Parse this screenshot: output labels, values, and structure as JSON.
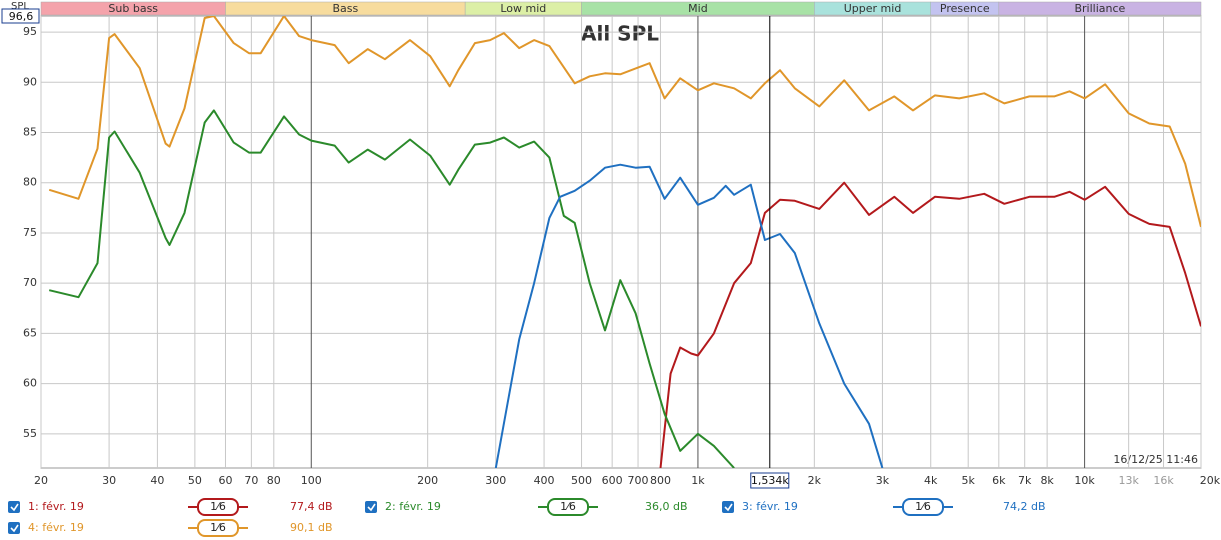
{
  "chart_data": {
    "type": "line",
    "title": "All SPL",
    "y_label": "SPL",
    "timestamp": "16/12/25 11:46",
    "log_x": true,
    "grid": true,
    "xlim": [
      20,
      20000
    ],
    "ylim": [
      51.6,
      96.6
    ],
    "yticks": [
      55,
      60,
      65,
      70,
      75,
      80,
      85,
      90,
      95,
      {
        "value": 96.6,
        "label": "96,6"
      }
    ],
    "xticks": [
      20,
      30,
      40,
      50,
      60,
      70,
      80,
      100,
      200,
      300,
      400,
      500,
      600,
      700,
      800,
      {
        "value": 1000,
        "label": "1k"
      },
      {
        "value": 2000,
        "label": "2k"
      },
      {
        "value": 3000,
        "label": "3k"
      },
      {
        "value": 4000,
        "label": "4k"
      },
      {
        "value": 5000,
        "label": "5k"
      },
      {
        "value": 6000,
        "label": "6k"
      },
      {
        "value": 7000,
        "label": "7k"
      },
      {
        "value": 8000,
        "label": "8k"
      },
      {
        "value": 10000,
        "label": "10k"
      },
      {
        "value": 13000,
        "label": "13k"
      },
      {
        "value": 16000,
        "label": "16k"
      },
      {
        "value": 20000,
        "label": "20kHz"
      }
    ],
    "cursor": {
      "value": 1534,
      "label": "1,534k"
    },
    "bands": [
      {
        "name": "Sub bass",
        "from": 20,
        "to": 60,
        "color": "#f4a3ab"
      },
      {
        "name": "Bass",
        "from": 60,
        "to": 250,
        "color": "#f7dc9e"
      },
      {
        "name": "Low mid",
        "from": 250,
        "to": 500,
        "color": "#dcefa6"
      },
      {
        "name": "Mid",
        "from": 500,
        "to": 2000,
        "color": "#a8e2a6"
      },
      {
        "name": "Upper mid",
        "from": 2000,
        "to": 4000,
        "color": "#a9e2dc"
      },
      {
        "name": "Presence",
        "from": 4000,
        "to": 6000,
        "color": "#c3c3f0"
      },
      {
        "name": "Brilliance",
        "from": 6000,
        "to": 20000,
        "color": "#c9b3e3"
      }
    ],
    "series": [
      {
        "name": "1: févr. 19",
        "color": "#b3191c",
        "smoothing": "1⁄6",
        "readout": "77,4 dB",
        "x": [
          800,
          850,
          900,
          960,
          1000,
          1100,
          1240,
          1370,
          1490,
          1630,
          1780,
          2060,
          2390,
          2770,
          3220,
          3600,
          4100,
          4740,
          5500,
          6200,
          7200,
          8350,
          9140,
          10000,
          11300,
          13000,
          14700,
          16600,
          18200,
          20000
        ],
        "values": [
          51.6,
          61,
          63.6,
          63,
          62.8,
          65,
          70,
          72,
          77,
          78.3,
          78.2,
          77.4,
          80,
          76.8,
          78.6,
          77,
          78.6,
          78.4,
          78.9,
          77.9,
          78.6,
          78.6,
          79.1,
          78.3,
          79.6,
          76.9,
          75.9,
          75.6,
          71,
          65.7
        ]
      },
      {
        "name": "2: févr. 19",
        "color": "#2b8a2b",
        "smoothing": "1⁄6",
        "readout": "36,0 dB",
        "x": [
          21,
          25,
          28,
          30,
          31,
          36,
          42,
          43,
          47,
          53,
          56,
          63,
          69,
          74,
          85,
          93,
          100,
          115,
          125,
          140,
          155,
          180,
          203,
          228,
          240,
          265,
          290,
          315,
          345,
          377,
          413,
          450,
          480,
          525,
          575,
          630,
          690,
          750,
          820,
          900,
          1000,
          1100,
          1240
        ],
        "values": [
          69.3,
          68.6,
          72,
          84.5,
          85.1,
          81,
          74.5,
          73.8,
          77,
          86,
          87.2,
          84,
          83,
          83,
          86.6,
          84.8,
          84.2,
          83.7,
          82,
          83.3,
          82.3,
          84.3,
          82.7,
          79.8,
          81.3,
          83.8,
          84,
          84.5,
          83.5,
          84.1,
          82.5,
          76.7,
          76,
          70,
          65.3,
          70.3,
          67,
          62,
          57,
          53.3,
          55,
          53.8,
          51.6
        ]
      },
      {
        "name": "3: févr. 19",
        "color": "#1f70c1",
        "smoothing": "1⁄6",
        "readout": "74,2 dB",
        "x": [
          300,
          345,
          377,
          413,
          440,
          480,
          525,
          575,
          630,
          690,
          750,
          820,
          900,
          1000,
          1100,
          1180,
          1240,
          1370,
          1490,
          1630,
          1780,
          2060,
          2390,
          2770,
          3000
        ],
        "values": [
          51.6,
          64.4,
          70,
          76.5,
          78.6,
          79.2,
          80.2,
          81.5,
          81.8,
          81.5,
          81.6,
          78.4,
          80.5,
          77.8,
          78.5,
          79.7,
          78.8,
          79.8,
          74.3,
          74.9,
          73,
          66,
          60,
          56,
          51.6
        ]
      },
      {
        "name": "4: févr. 19",
        "color": "#e0962a",
        "smoothing": "1⁄6",
        "readout": "90,1 dB",
        "x": [
          21,
          25,
          28,
          30,
          31,
          36,
          42,
          43,
          47,
          53,
          56,
          63,
          69,
          74,
          85,
          93,
          100,
          115,
          125,
          140,
          155,
          180,
          203,
          228,
          240,
          265,
          290,
          315,
          345,
          377,
          413,
          480,
          525,
          575,
          630,
          750,
          820,
          900,
          1000,
          1100,
          1240,
          1370,
          1490,
          1630,
          1780,
          2060,
          2390,
          2770,
          3220,
          3600,
          4100,
          4740,
          5500,
          6200,
          7200,
          8350,
          9140,
          10000,
          11300,
          13000,
          14700,
          16600,
          18200,
          20000
        ],
        "values": [
          79.3,
          78.4,
          83.4,
          94.4,
          94.8,
          91.4,
          83.9,
          83.6,
          87.4,
          96.4,
          96.6,
          93.9,
          92.9,
          92.9,
          96.6,
          94.6,
          94.2,
          93.7,
          91.9,
          93.3,
          92.3,
          94.2,
          92.6,
          89.6,
          91.2,
          93.9,
          94.2,
          94.9,
          93.4,
          94.2,
          93.6,
          89.9,
          90.6,
          90.9,
          90.8,
          91.9,
          88.4,
          90.4,
          89.2,
          89.9,
          89.4,
          88.4,
          89.9,
          91.2,
          89.4,
          87.6,
          90.2,
          87.2,
          88.6,
          87.2,
          88.7,
          88.4,
          88.9,
          87.9,
          88.6,
          88.6,
          89.1,
          88.4,
          89.8,
          86.9,
          85.9,
          85.6,
          81.9,
          75.6
        ]
      }
    ]
  }
}
